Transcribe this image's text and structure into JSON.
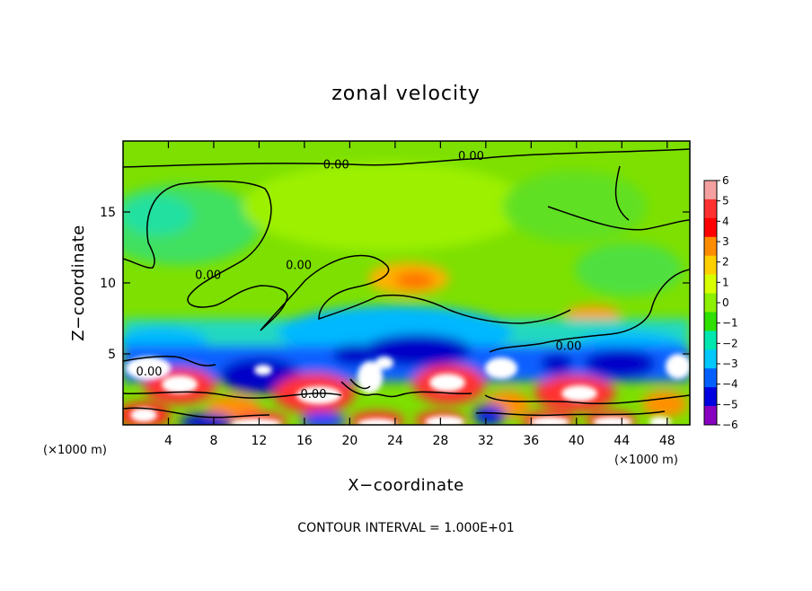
{
  "chart_data": {
    "type": "heatmap",
    "title": "zonal velocity",
    "xlabel": "X−coordinate",
    "ylabel": "Z−coordinate",
    "x_unit_left": "(×1000 m)",
    "x_unit_right": "(×1000 m)",
    "footer": "CONTOUR INTERVAL = 1.000E+01",
    "xlim": [
      0,
      50
    ],
    "ylim": [
      0,
      20
    ],
    "x_ticks": [
      4,
      8,
      12,
      16,
      20,
      24,
      28,
      32,
      36,
      40,
      44,
      48
    ],
    "x_tick_labels": [
      "4",
      "8",
      "12",
      "16",
      "20",
      "24",
      "28",
      "32",
      "36",
      "40",
      "44",
      "48"
    ],
    "y_ticks": [
      5,
      10,
      15
    ],
    "y_tick_labels": [
      "5",
      "10",
      "15"
    ],
    "colorbar": {
      "min": -6,
      "max": 6,
      "ticks": [
        6,
        5,
        4,
        3,
        2,
        1,
        0,
        -1,
        -2,
        -3,
        -4,
        -5,
        -6
      ],
      "tick_labels": [
        "6",
        "5",
        "4",
        "3",
        "2",
        "1",
        "0",
        "−1",
        "−2",
        "−3",
        "−4",
        "−5",
        "−6"
      ],
      "colors": [
        "#f4a0a0",
        "#ff3030",
        "#ff0000",
        "#ff8c00",
        "#ffd000",
        "#d8ff00",
        "#8cf000",
        "#30e000",
        "#00e8b0",
        "#00c8ff",
        "#0060ff",
        "#0000e0",
        "#8800c0"
      ]
    },
    "contour_labels": [
      {
        "x": 18.8,
        "z": 18.4,
        "text": "0.00"
      },
      {
        "x": 30.7,
        "z": 19.0,
        "text": "0.00"
      },
      {
        "x": 7.5,
        "z": 10.6,
        "text": "0.00"
      },
      {
        "x": 15.5,
        "z": 11.3,
        "text": "0.00"
      },
      {
        "x": 39.3,
        "z": 5.6,
        "text": "0.00"
      },
      {
        "x": 2.3,
        "z": 3.8,
        "text": "0.00"
      },
      {
        "x": 16.8,
        "z": 2.2,
        "text": "0.00"
      }
    ]
  }
}
